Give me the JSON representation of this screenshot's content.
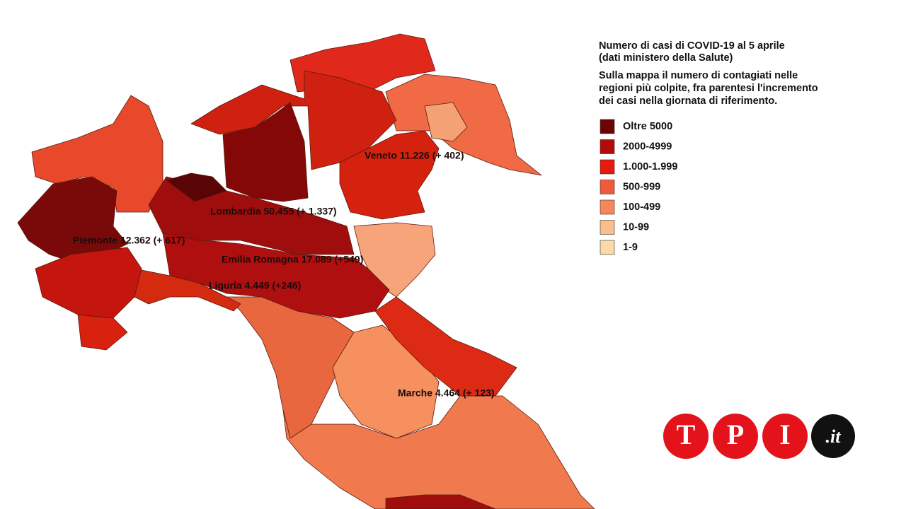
{
  "header": {
    "title": "Numero di casi di COVID-19 al 5 aprile",
    "subtitle": "(dati ministero della Salute)",
    "description": [
      "Sulla mappa il numero di contagiati nelle",
      "regioni più colpite, fra parentesi l'incremento",
      "dei casi nella giornata di riferimento."
    ]
  },
  "legend": [
    {
      "label": "Oltre 5000",
      "color": "#6b0404"
    },
    {
      "label": "2000-4999",
      "color": "#b20b0b"
    },
    {
      "label": "1.000-1.999",
      "color": "#e8190d"
    },
    {
      "label": "500-999",
      "color": "#f25a3c"
    },
    {
      "label": "100-499",
      "color": "#f5875a"
    },
    {
      "label": "10-99",
      "color": "#f9be8e"
    },
    {
      "label": "1-9",
      "color": "#fcd9a9"
    }
  ],
  "regions": [
    {
      "label": "Veneto 11.226  (+ 402)"
    },
    {
      "label": "Lombardia 50.455 (+ 1.337)"
    },
    {
      "label": "Piemonte 12.362  (+ 617)"
    },
    {
      "label": "Emilia Romagna 17.089  (+549)"
    },
    {
      "label": "Liguria 4.449 (+246)"
    },
    {
      "label": "Marche 4.464  (+ 123)"
    }
  ],
  "logo": {
    "letters": [
      "T",
      "P",
      "I"
    ],
    "suffix": ".it"
  }
}
